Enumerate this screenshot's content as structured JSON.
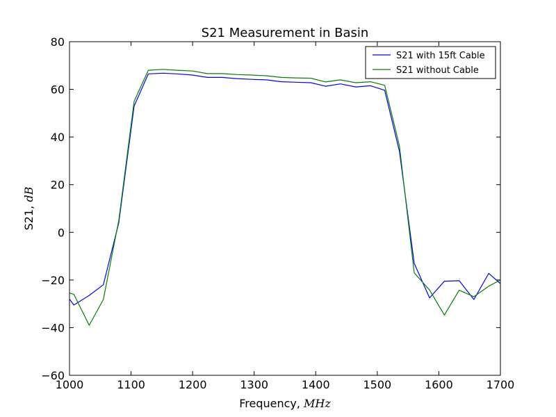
{
  "chart_data": {
    "type": "line",
    "title": "S21 Measurement in Basin",
    "xlabel": {
      "prefix": "Frequency, ",
      "math": "MHz"
    },
    "ylabel": {
      "prefix": "S21, ",
      "math": "dB"
    },
    "xlim": [
      1000,
      1700
    ],
    "ylim": [
      -60,
      80
    ],
    "xticks": [
      1000,
      1100,
      1200,
      1300,
      1400,
      1500,
      1600,
      1700
    ],
    "yticks": [
      -60,
      -40,
      -20,
      0,
      20,
      40,
      60,
      80
    ],
    "xtick_labels": [
      "1000",
      "1100",
      "1200",
      "1300",
      "1400",
      "1500",
      "1600",
      "1700"
    ],
    "ytick_labels": [
      "−60",
      "−40",
      "−20",
      "0",
      "20",
      "40",
      "60",
      "80"
    ],
    "grid": false,
    "legend_position": "top-right",
    "series": [
      {
        "name": "S21 with 15ft Cable",
        "color": "#0000ff",
        "points": [
          [
            1000,
            -28
          ],
          [
            1007,
            -30.5
          ],
          [
            1032,
            -26.5
          ],
          [
            1055,
            -22
          ],
          [
            1080,
            4
          ],
          [
            1105,
            53
          ],
          [
            1128,
            66.5
          ],
          [
            1152,
            66.8
          ],
          [
            1175,
            66.5
          ],
          [
            1200,
            66
          ],
          [
            1224,
            65
          ],
          [
            1248,
            65
          ],
          [
            1272,
            64.5
          ],
          [
            1296,
            64.2
          ],
          [
            1320,
            64
          ],
          [
            1344,
            63.2
          ],
          [
            1368,
            63
          ],
          [
            1392,
            62.8
          ],
          [
            1416,
            61.3
          ],
          [
            1440,
            62.3
          ],
          [
            1465,
            61
          ],
          [
            1489,
            61.5
          ],
          [
            1512,
            59.6
          ],
          [
            1536,
            34
          ],
          [
            1560,
            -13
          ],
          [
            1585,
            -27.5
          ],
          [
            1609,
            -20.5
          ],
          [
            1633,
            -20.3
          ],
          [
            1657,
            -28.2
          ],
          [
            1681,
            -17.2
          ],
          [
            1700,
            -21.5
          ]
        ]
      },
      {
        "name": "S21 without Cable",
        "color": "#008000",
        "points": [
          [
            1000,
            -25.5
          ],
          [
            1007,
            -26
          ],
          [
            1032,
            -39
          ],
          [
            1055,
            -28.2
          ],
          [
            1080,
            5
          ],
          [
            1105,
            55
          ],
          [
            1128,
            68
          ],
          [
            1152,
            68.4
          ],
          [
            1175,
            68
          ],
          [
            1200,
            67.7
          ],
          [
            1224,
            66.6
          ],
          [
            1248,
            66.6
          ],
          [
            1272,
            66.2
          ],
          [
            1296,
            66
          ],
          [
            1320,
            65.7
          ],
          [
            1344,
            65
          ],
          [
            1368,
            64.8
          ],
          [
            1392,
            64.7
          ],
          [
            1416,
            63.1
          ],
          [
            1440,
            64
          ],
          [
            1465,
            62.8
          ],
          [
            1489,
            63.2
          ],
          [
            1512,
            61.7
          ],
          [
            1536,
            36.3
          ],
          [
            1560,
            -17
          ],
          [
            1585,
            -24.2
          ],
          [
            1609,
            -34.7
          ],
          [
            1633,
            -24.3
          ],
          [
            1657,
            -27
          ],
          [
            1681,
            -22.6
          ],
          [
            1700,
            -20
          ]
        ]
      }
    ]
  }
}
